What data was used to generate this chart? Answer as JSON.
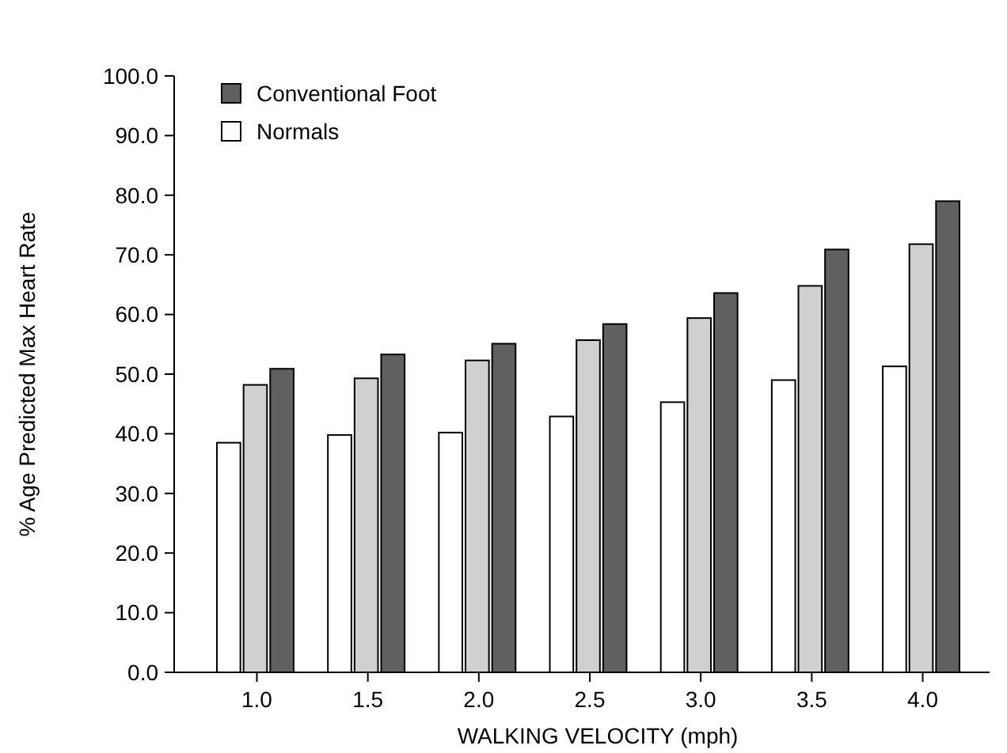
{
  "chart_data": {
    "type": "bar",
    "xlabel": "WALKING VELOCITY (mph)",
    "ylabel": "% Age Predicted Max Heart Rate",
    "categories": [
      "1.0",
      "1.5",
      "2.0",
      "2.5",
      "3.0",
      "3.5",
      "4.0"
    ],
    "series": [
      {
        "name": "Normals",
        "color": "#ffffff",
        "values": [
          38.5,
          39.8,
          40.2,
          42.9,
          45.3,
          49.0,
          51.3
        ]
      },
      {
        "color": "#d0d0d0",
        "values": [
          48.2,
          49.3,
          52.3,
          55.7,
          59.4,
          64.8,
          71.8
        ]
      },
      {
        "name": "Conventional Foot",
        "color": "#606060",
        "values": [
          50.9,
          53.3,
          55.1,
          58.4,
          63.6,
          70.9,
          79.0
        ]
      }
    ],
    "ylim": [
      0,
      100
    ],
    "yticks": [
      {
        "value": 0,
        "label": "0.0"
      },
      {
        "value": 10,
        "label": "10.0"
      },
      {
        "value": 20,
        "label": "20.0"
      },
      {
        "value": 30,
        "label": "30.0"
      },
      {
        "value": 40,
        "label": "40.0"
      },
      {
        "value": 50,
        "label": "50.0"
      },
      {
        "value": 60,
        "label": "60.0"
      },
      {
        "value": 70,
        "label": "70.0"
      },
      {
        "value": 80,
        "label": "80.0"
      },
      {
        "value": 90,
        "label": "90.0"
      },
      {
        "value": 100,
        "label": "100.0"
      }
    ],
    "grid": false,
    "legend": "top left"
  }
}
